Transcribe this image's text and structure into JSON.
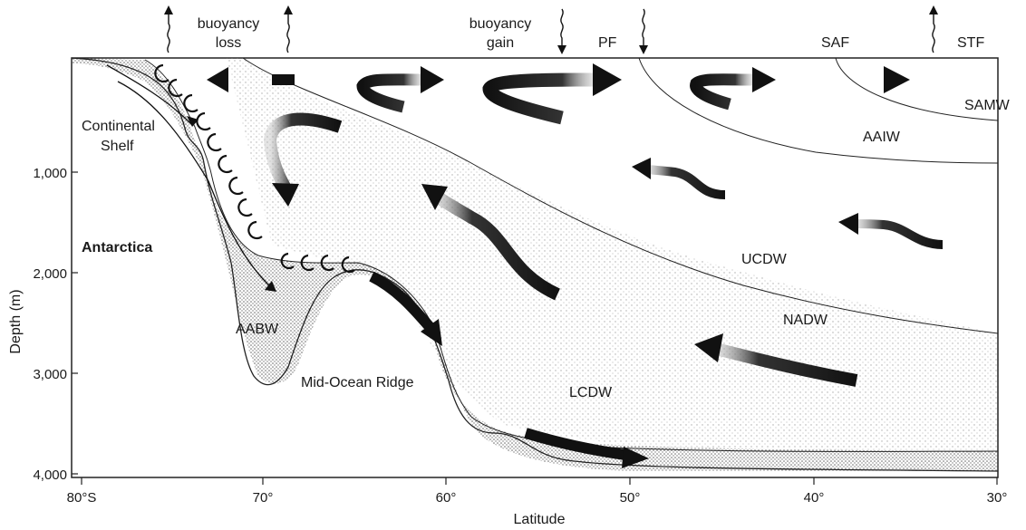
{
  "top_labels": {
    "buoyancy_loss_line1": "buoyancy",
    "buoyancy_loss_line2": "loss",
    "buoyancy_gain_line1": "buoyancy",
    "buoyancy_gain_line2": "gain",
    "pf": "PF",
    "saf": "SAF",
    "stf": "STF"
  },
  "water_masses": {
    "samw": "SAMW",
    "aaiw": "AAIW",
    "ucdw": "UCDW",
    "nadw": "NADW",
    "lcdw": "LCDW",
    "aabw": "AABW"
  },
  "features": {
    "continental_shelf_line1": "Continental",
    "continental_shelf_line2": "Shelf",
    "antarctica": "Antarctica",
    "mid_ocean_ridge": "Mid-Ocean Ridge"
  },
  "axes": {
    "y_title": "Depth (m)",
    "x_title": "Latitude",
    "y_ticks": [
      "1,000",
      "2,000",
      "3,000",
      "4,000"
    ],
    "x_ticks": [
      "80°S",
      "70°",
      "60°",
      "50°",
      "40°",
      "30°"
    ]
  },
  "icons": {
    "flux_up": "wavy-up-arrow-icon",
    "flux_down": "wavy-down-arrow-icon",
    "flow": "flow-arrow-icon"
  }
}
